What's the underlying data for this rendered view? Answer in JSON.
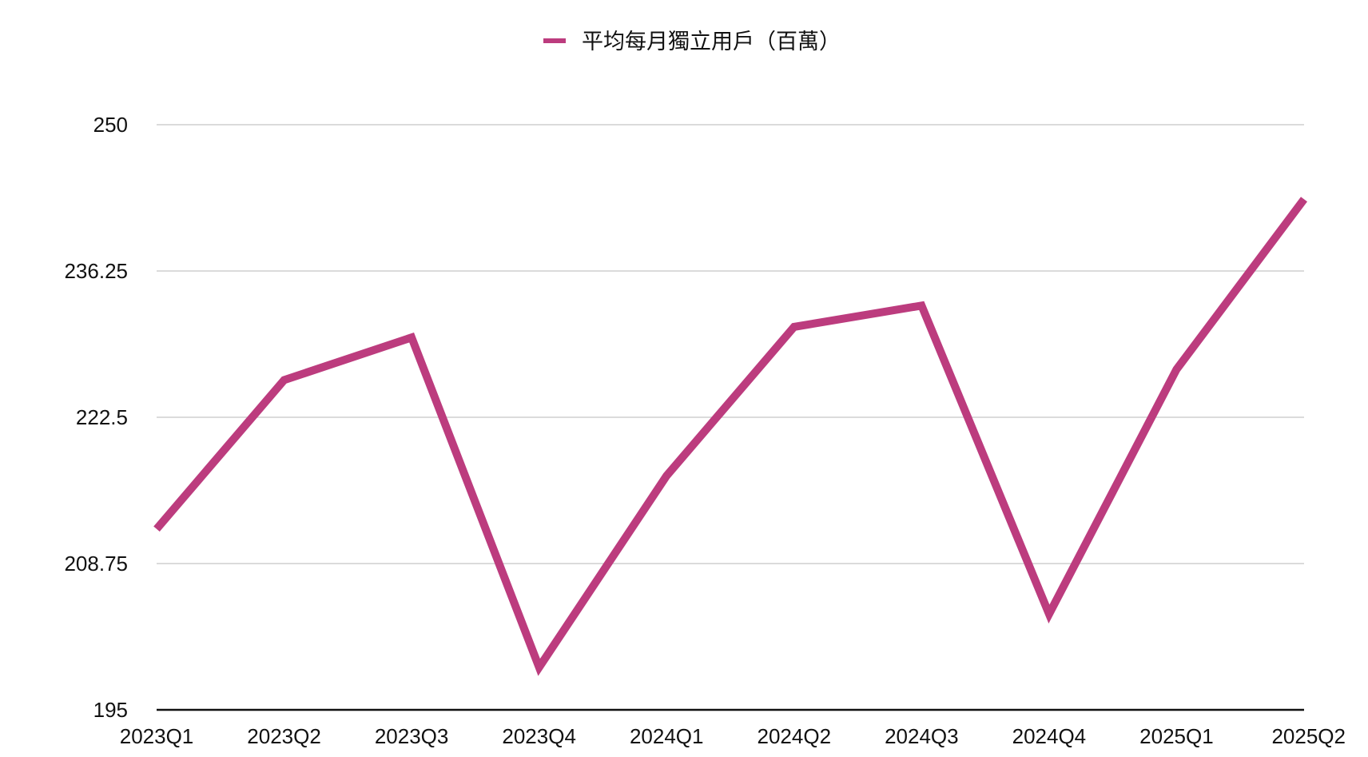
{
  "chart_data": {
    "type": "line",
    "title": "",
    "xlabel": "",
    "ylabel": "",
    "categories": [
      "2023Q1",
      "2023Q2",
      "2023Q3",
      "2023Q4",
      "2024Q1",
      "2024Q2",
      "2024Q3",
      "2024Q4",
      "2025Q1",
      "2025Q2"
    ],
    "series": [
      {
        "name": "平均每月獨立用戶（百萬）",
        "color": "#BC3C7E",
        "values": [
          212,
          226,
          230,
          199,
          217,
          231,
          233,
          204,
          227,
          243
        ]
      }
    ],
    "ylim": [
      195,
      250
    ],
    "yticks": [
      195,
      208.75,
      222.5,
      236.25,
      250
    ],
    "ytick_labels": [
      "195",
      "208.75",
      "222.5",
      "236.25",
      "250"
    ],
    "grid": true,
    "legend_position": "top"
  }
}
